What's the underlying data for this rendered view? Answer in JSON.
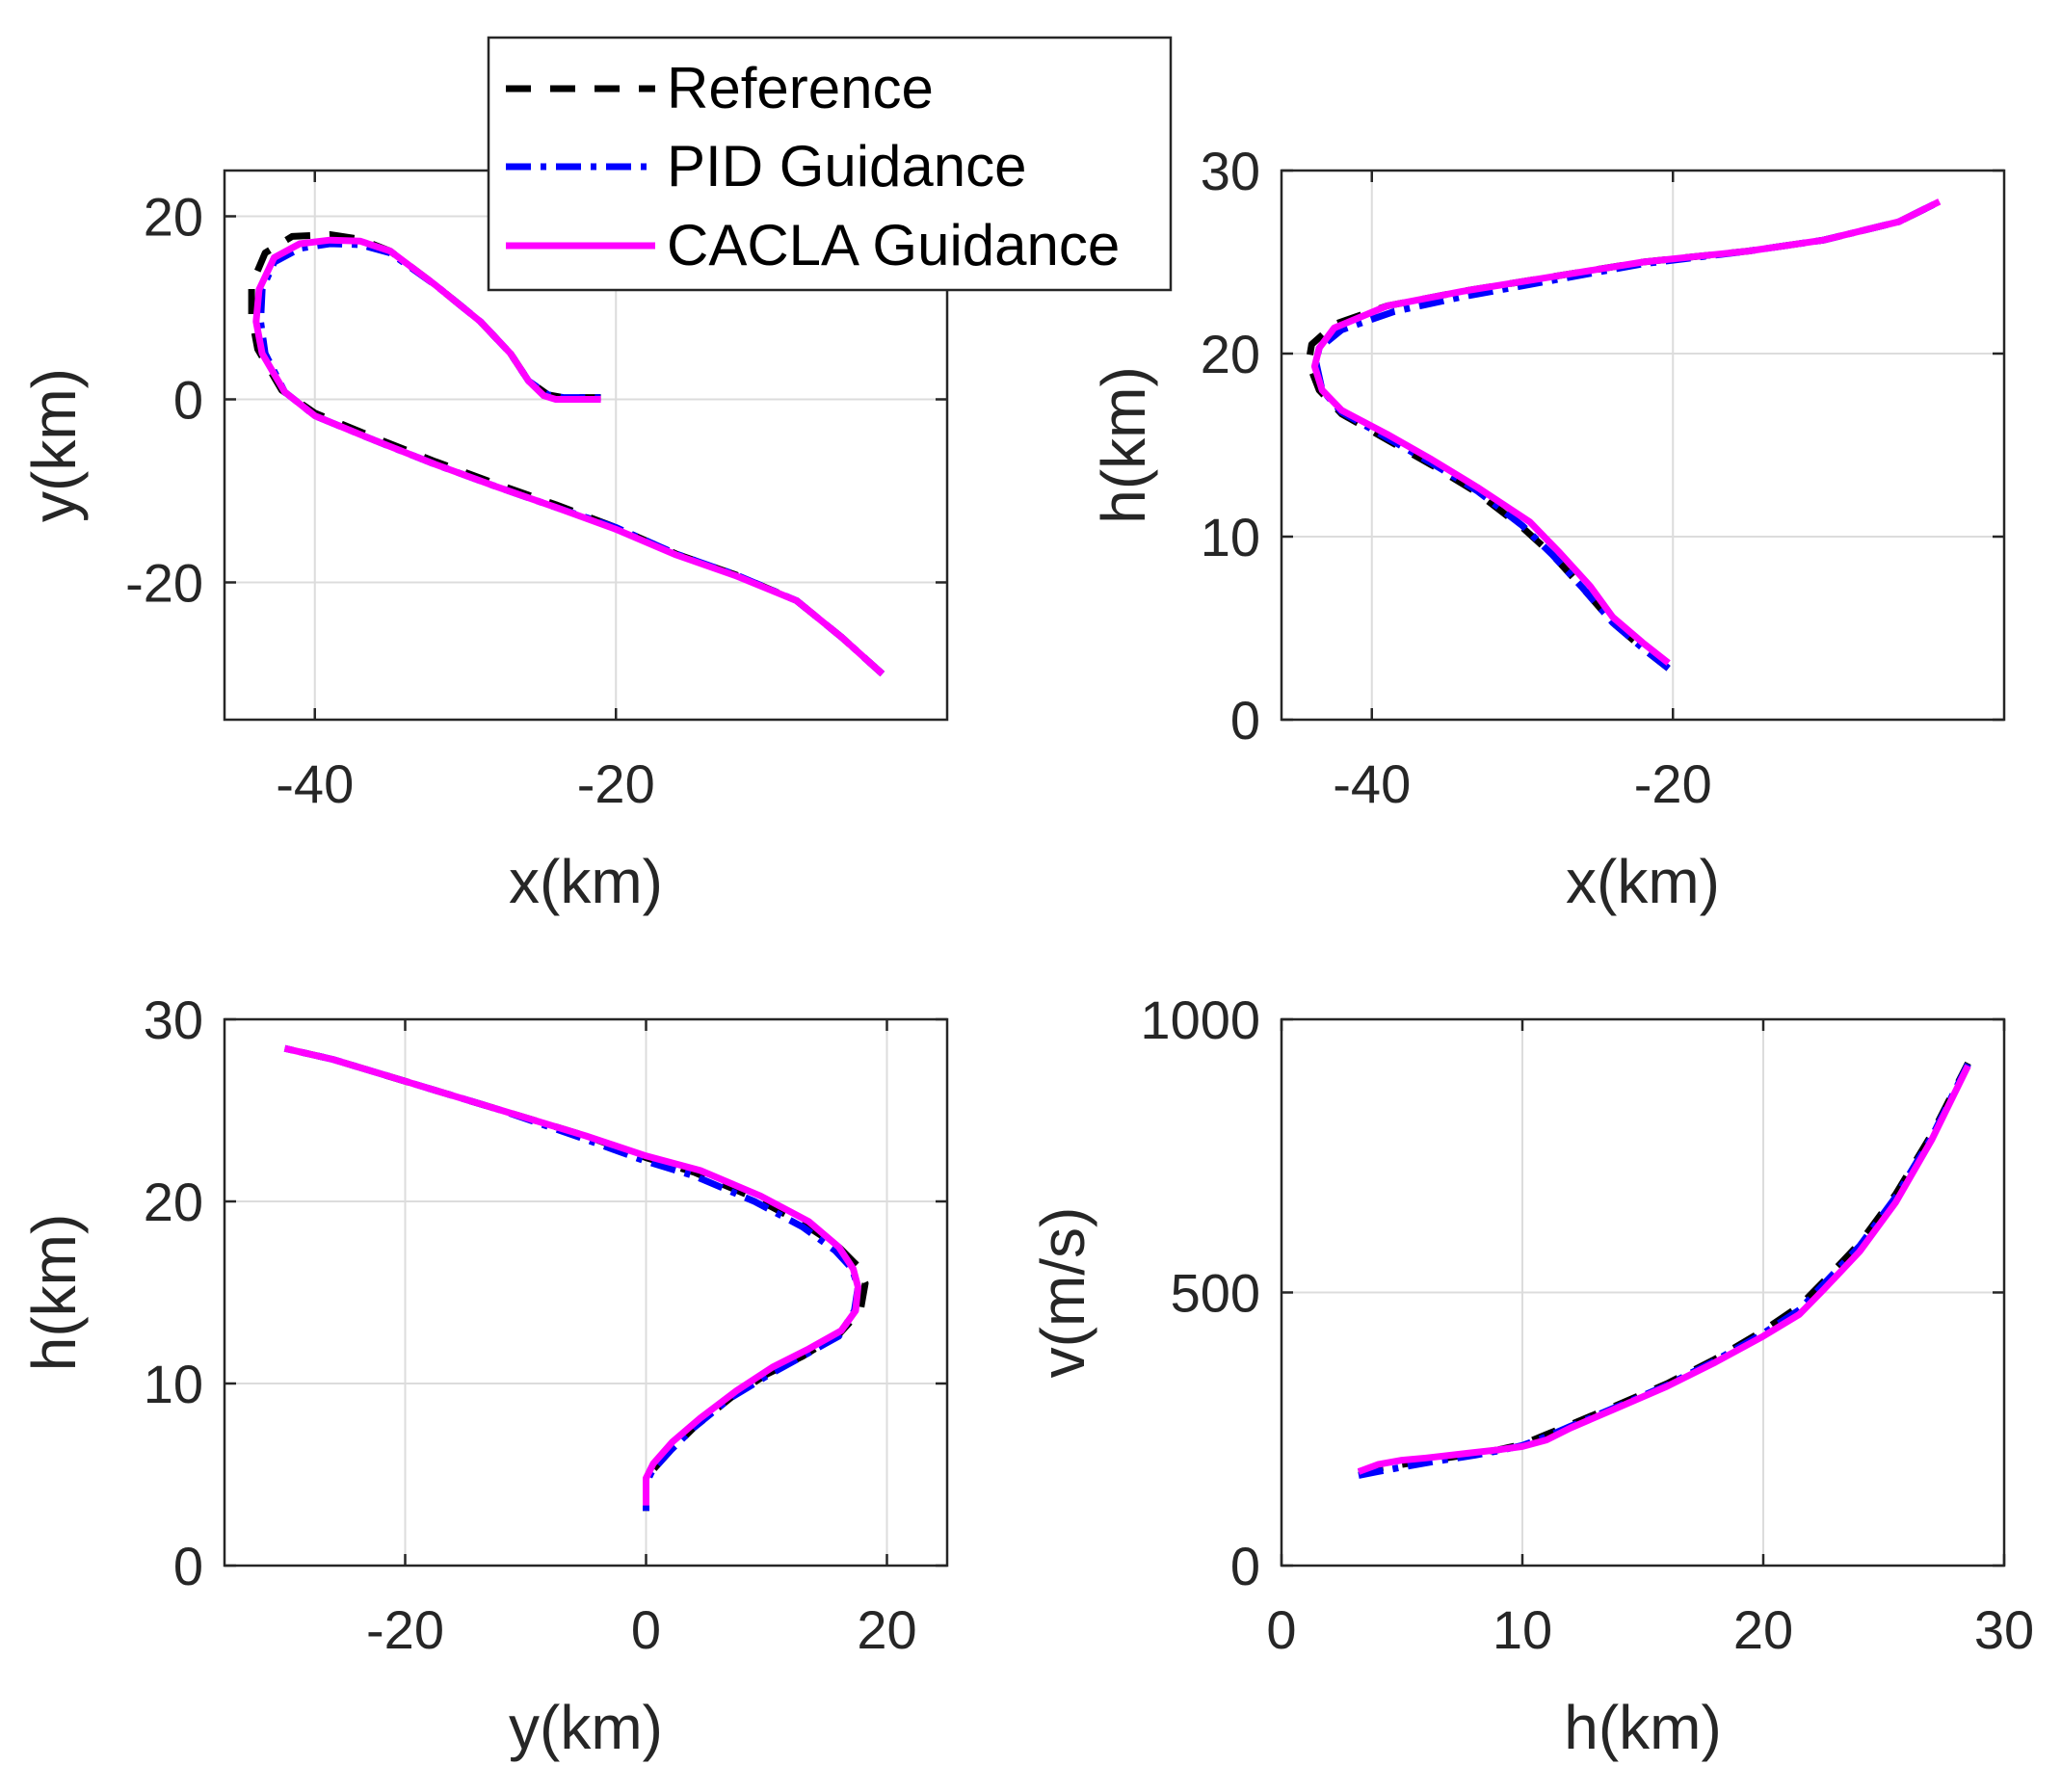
{
  "figure": {
    "colors": {
      "reference": "#000000",
      "pid": "#0000ff",
      "cacla": "#ff00ff",
      "grid": "#dcdcdc",
      "axes": "#262626"
    }
  },
  "legend": {
    "entries": [
      {
        "key": "reference",
        "label": "Reference",
        "style": "dashed"
      },
      {
        "key": "pid",
        "label": "PID Guidance",
        "style": "dash-dot"
      },
      {
        "key": "cacla",
        "label": "CACLA Guidance",
        "style": "solid"
      }
    ]
  },
  "chart_data": [
    {
      "id": "xy",
      "type": "line",
      "xlabel": "x(km)",
      "ylabel": "y(km)",
      "xlim": [
        -46,
        2
      ],
      "ylim": [
        -35,
        25
      ],
      "xticks": [
        -40,
        -20
      ],
      "xtick_labels": [
        "-40",
        "-20"
      ],
      "yticks": [
        -20,
        0,
        20
      ],
      "ytick_labels": [
        "-20",
        "0",
        "20"
      ],
      "grid": true,
      "series": [
        {
          "key": "reference",
          "name": "Reference",
          "x": [
            -2.3,
            -5,
            -8,
            -12,
            -16,
            -20,
            -24,
            -28,
            -32,
            -36,
            -40,
            -42.2,
            -43.8,
            -44.2,
            -44.2,
            -43.3,
            -41.5,
            -39,
            -37,
            -35,
            -32,
            -29,
            -27,
            -25.8,
            -24.5,
            -23.5,
            -21
          ],
          "y": [
            -30,
            -26,
            -22,
            -19.2,
            -16.9,
            -14,
            -11.5,
            -9.2,
            -6.8,
            -4.2,
            -1.5,
            1,
            5.5,
            9,
            12.5,
            16,
            17.8,
            18,
            17.5,
            16.2,
            12.5,
            8.5,
            5,
            2,
            0.5,
            0.2,
            0.2
          ]
        },
        {
          "key": "pid",
          "name": "PID Guidance",
          "x": [
            -2.3,
            -5,
            -8,
            -12,
            -16,
            -20,
            -24,
            -28,
            -32,
            -36,
            -40,
            -42,
            -43.3,
            -43.6,
            -43.5,
            -42.7,
            -41,
            -39,
            -37,
            -35,
            -32,
            -29,
            -27,
            -25.8,
            -24.5,
            -23.5,
            -21
          ],
          "y": [
            -30,
            -26,
            -22,
            -19.2,
            -16.9,
            -14,
            -11.8,
            -9.5,
            -7.1,
            -4.5,
            -1.8,
            0.8,
            5,
            8.5,
            12,
            15,
            16.5,
            17,
            16.9,
            16,
            12.5,
            8.5,
            5,
            2,
            0.5,
            0.2,
            0.2
          ]
        },
        {
          "key": "cacla",
          "name": "CACLA Guidance",
          "x": [
            -2.3,
            -5,
            -8,
            -12,
            -16,
            -20,
            -24,
            -28,
            -32,
            -36,
            -40,
            -42,
            -43.5,
            -43.9,
            -43.7,
            -42.7,
            -41,
            -39,
            -37,
            -35,
            -32,
            -29,
            -27,
            -25.8,
            -24.8,
            -24,
            -21
          ],
          "y": [
            -30,
            -26,
            -22,
            -19.3,
            -17,
            -14.2,
            -11.8,
            -9.5,
            -7.1,
            -4.5,
            -1.8,
            0.8,
            5,
            8.5,
            12,
            15.5,
            17,
            17.4,
            17.3,
            16.2,
            12.5,
            8.5,
            5,
            2,
            0.4,
            0,
            0
          ]
        }
      ]
    },
    {
      "id": "xh",
      "type": "line",
      "xlabel": "x(km)",
      "ylabel": "h(km)",
      "xlim": [
        -46,
        2
      ],
      "ylim": [
        0,
        30
      ],
      "xticks": [
        -40,
        -20
      ],
      "xtick_labels": [
        "-40",
        "-20"
      ],
      "yticks": [
        0,
        10,
        20,
        30
      ],
      "ytick_labels": [
        "0",
        "10",
        "20",
        "30"
      ],
      "grid": true,
      "series": [
        {
          "key": "reference",
          "name": "Reference",
          "x": [
            -20.3,
            -22,
            -24,
            -26,
            -28,
            -30,
            -33,
            -36,
            -39,
            -42,
            -43.5,
            -44.2,
            -44,
            -42.5,
            -39,
            -34,
            -28,
            -22,
            -15,
            -10,
            -5,
            -2.3
          ],
          "y": [
            2.8,
            3.9,
            5.3,
            7.2,
            9,
            10.5,
            12.4,
            13.9,
            15.3,
            16.7,
            18,
            19.5,
            20.5,
            21.6,
            22.6,
            23.4,
            24.2,
            25,
            25.6,
            26.2,
            27.2,
            28.3
          ]
        },
        {
          "key": "pid",
          "name": "PID Guidance",
          "x": [
            -20.3,
            -22,
            -24,
            -26,
            -28,
            -30,
            -33,
            -36,
            -39,
            -42,
            -43.3,
            -43.7,
            -43.5,
            -42,
            -38.5,
            -34,
            -28,
            -22,
            -15,
            -10,
            -5,
            -2.3
          ],
          "y": [
            2.8,
            3.9,
            5.3,
            7.2,
            9,
            10.6,
            12.5,
            14,
            15.4,
            16.8,
            18,
            19.5,
            20.3,
            21.3,
            22.3,
            23.1,
            24,
            24.9,
            25.6,
            26.2,
            27.2,
            28.3
          ]
        },
        {
          "key": "cacla",
          "name": "CACLA Guidance",
          "x": [
            -20.3,
            -22,
            -24,
            -25.5,
            -27.5,
            -29.5,
            -33,
            -36,
            -39,
            -42,
            -43.3,
            -43.8,
            -43.5,
            -42.5,
            -39,
            -34,
            -28,
            -22,
            -15,
            -10,
            -5,
            -2.3
          ],
          "y": [
            3.1,
            4.2,
            5.6,
            7.3,
            9.1,
            10.8,
            12.7,
            14.2,
            15.6,
            16.9,
            18,
            19.3,
            20.3,
            21.4,
            22.6,
            23.4,
            24.2,
            25,
            25.6,
            26.2,
            27.2,
            28.3
          ]
        }
      ]
    },
    {
      "id": "yh",
      "type": "line",
      "xlabel": "y(km)",
      "ylabel": "h(km)",
      "xlim": [
        -35,
        25
      ],
      "ylim": [
        0,
        30
      ],
      "xticks": [
        -20,
        0,
        20
      ],
      "xtick_labels": [
        "-20",
        "0",
        "20"
      ],
      "yticks": [
        0,
        10,
        20,
        30
      ],
      "ytick_labels": [
        "0",
        "10",
        "20",
        "30"
      ],
      "grid": true,
      "series": [
        {
          "key": "reference",
          "name": "Reference",
          "x": [
            0,
            0,
            0.5,
            2,
            4,
            7,
            10,
            13,
            16,
            17.8,
            18.2,
            17.5,
            16,
            13,
            9,
            4,
            0,
            -5,
            -12,
            -17,
            -22,
            -26,
            -30
          ],
          "y": [
            3,
            4.5,
            5.2,
            6.3,
            7.6,
            9.2,
            10.5,
            11.5,
            12.7,
            14,
            15.5,
            16.5,
            17.5,
            18.8,
            20.2,
            21.6,
            22.4,
            23.6,
            25,
            26,
            27,
            27.8,
            28.4
          ]
        },
        {
          "key": "pid",
          "name": "PID Guidance",
          "x": [
            0,
            0,
            0.5,
            2,
            4,
            7,
            10,
            13,
            16,
            17.3,
            17.6,
            17.1,
            15.7,
            13,
            9,
            4,
            0,
            -5,
            -12,
            -17,
            -22,
            -26,
            -30
          ],
          "y": [
            3,
            4.5,
            5.2,
            6.3,
            7.6,
            9.2,
            10.4,
            11.5,
            12.6,
            14,
            15.3,
            16.3,
            17.3,
            18.6,
            20,
            21.4,
            22.2,
            23.4,
            25,
            26,
            27,
            27.8,
            28.4
          ]
        },
        {
          "key": "cacla",
          "name": "CACLA Guidance",
          "x": [
            0,
            0,
            0.6,
            2.2,
            4.5,
            7.5,
            10.5,
            13.5,
            16.2,
            17.4,
            17.6,
            17.2,
            16,
            13.5,
            9.5,
            4.5,
            0,
            -5,
            -12,
            -17,
            -22,
            -26,
            -30
          ],
          "y": [
            3.3,
            4.8,
            5.6,
            6.8,
            8.1,
            9.6,
            10.9,
            11.9,
            12.9,
            14,
            15.3,
            16.3,
            17.5,
            18.9,
            20.3,
            21.7,
            22.5,
            23.6,
            25,
            26,
            27,
            27.8,
            28.4
          ]
        }
      ]
    },
    {
      "id": "hv",
      "type": "line",
      "xlabel": "h(km)",
      "ylabel": "v(m/s)",
      "xlim": [
        0,
        30
      ],
      "ylim": [
        0,
        1000
      ],
      "xticks": [
        0,
        10,
        20,
        30
      ],
      "xtick_labels": [
        "0",
        "10",
        "20",
        "30"
      ],
      "yticks": [
        0,
        500,
        1000
      ],
      "ytick_labels": [
        "0",
        "500",
        "1000"
      ],
      "grid": true,
      "series": [
        {
          "key": "reference",
          "name": "Reference",
          "x": [
            3.2,
            4,
            5,
            6,
            7,
            8,
            9,
            10,
            11,
            12,
            14,
            16,
            18,
            20,
            21.5,
            22.5,
            24,
            25.5,
            27,
            28.5
          ],
          "y": [
            170,
            178,
            185,
            192,
            198,
            205,
            212,
            222,
            240,
            258,
            295,
            333,
            378,
            430,
            475,
            520,
            590,
            680,
            790,
            920
          ]
        },
        {
          "key": "pid",
          "name": "PID Guidance",
          "x": [
            3.2,
            4,
            5,
            6,
            7,
            8,
            9,
            10,
            11,
            12,
            14,
            16,
            18,
            20,
            21.5,
            22.5,
            24,
            25.5,
            27,
            28.5
          ],
          "y": [
            165,
            172,
            180,
            188,
            195,
            202,
            210,
            220,
            236,
            255,
            292,
            330,
            375,
            425,
            468,
            515,
            585,
            675,
            785,
            918
          ]
        },
        {
          "key": "cacla",
          "name": "CACLA Guidance",
          "x": [
            3.2,
            4,
            5,
            6,
            7,
            8,
            9,
            10,
            11,
            12,
            14,
            16,
            18,
            20,
            21.5,
            22.5,
            24,
            25.5,
            27,
            28.5
          ],
          "y": [
            172,
            185,
            193,
            197,
            202,
            207,
            212,
            218,
            230,
            252,
            290,
            328,
            372,
            420,
            460,
            505,
            575,
            665,
            780,
            915
          ]
        }
      ]
    }
  ]
}
